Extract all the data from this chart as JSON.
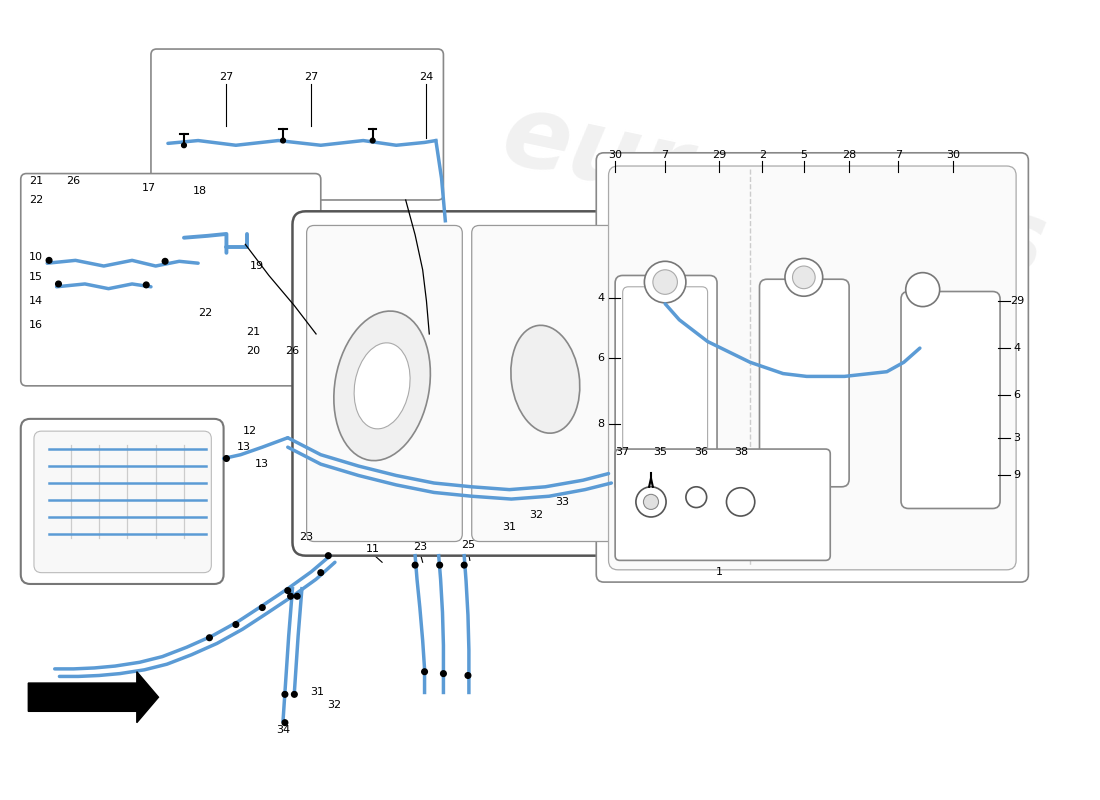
{
  "bg_color": "#ffffff",
  "blue": "#5b9bd5",
  "dark_blue": "#2a6099",
  "black": "#000000",
  "gray": "#888888",
  "light_gray": "#f0f0f0",
  "box_ec": "#888888",
  "tank_ec": "#555555"
}
